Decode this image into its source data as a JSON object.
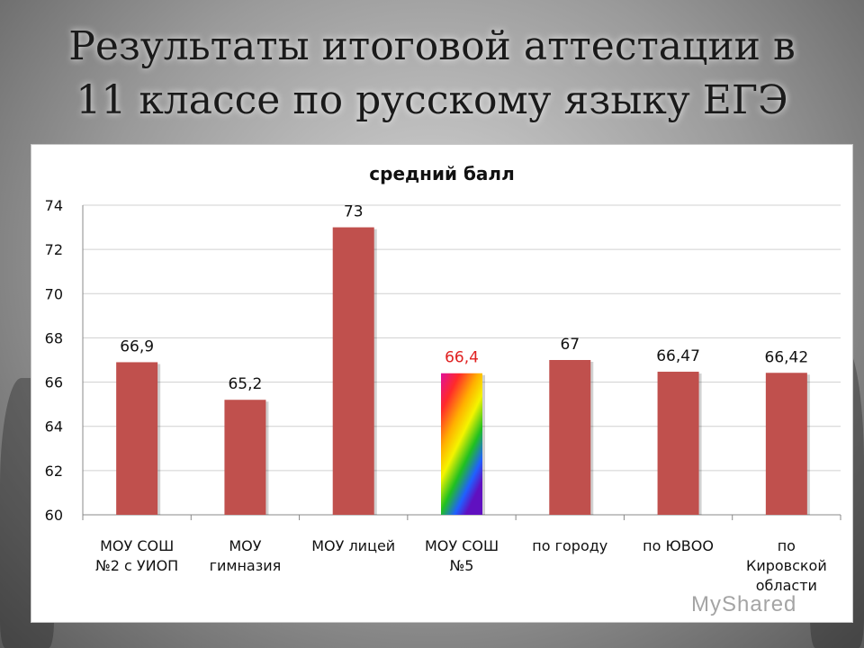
{
  "slide": {
    "title_line1": "Результаты итоговой аттестации  в",
    "title_line2": "11 классе по русскому языку ЕГЭ",
    "watermark": "MyShared"
  },
  "chart_data": {
    "type": "bar",
    "title": "средний балл",
    "categories": [
      [
        "МОУ СОШ",
        "№2 с УИОП"
      ],
      [
        "МОУ",
        "гимназия"
      ],
      [
        "МОУ лицей"
      ],
      [
        "МОУ СОШ",
        "№5"
      ],
      [
        "по городу"
      ],
      [
        "по ЮВОО"
      ],
      [
        "по",
        "Кировской",
        "области"
      ]
    ],
    "values": [
      66.9,
      65.2,
      73,
      66.4,
      67,
      66.47,
      66.42
    ],
    "value_labels": [
      "66,9",
      "65,2",
      "73",
      "66,4",
      "67",
      "66,47",
      "66,42"
    ],
    "highlight_index": 3,
    "highlight_label_color": "#e02020",
    "bar_color": "#c0504d",
    "ylim": [
      60,
      74
    ],
    "y_ticks": [
      60,
      62,
      64,
      66,
      68,
      70,
      72,
      74
    ],
    "grid": true,
    "xlabel": "",
    "ylabel": ""
  }
}
